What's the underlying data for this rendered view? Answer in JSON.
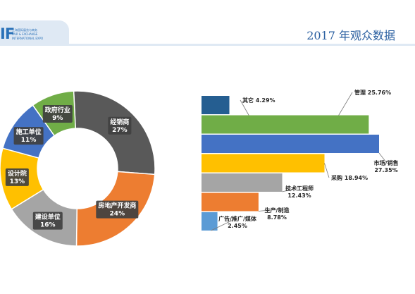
{
  "header": {
    "logo_mark": "IF",
    "logo_lines": [
      "上海国际展览与商务",
      "FAIR & EXCHANGE",
      "INTERNATIONAL EXPO"
    ],
    "title": "2017 年观众数据"
  },
  "colors": {
    "header_band": "#dfe9f4",
    "title": "#2a5fa0",
    "label_bg": "#404040",
    "leader_line": "#7a7a7a"
  },
  "chart_data": [
    {
      "type": "pie",
      "variant": "donut",
      "categories": [
        "经销商",
        "房地产开发商",
        "建设单位",
        "设计院",
        "施工单位",
        "政府行业"
      ],
      "values": [
        27,
        24,
        16,
        13,
        11,
        9
      ],
      "value_labels": [
        "27%",
        "24%",
        "16%",
        "13%",
        "11%",
        "9%"
      ],
      "colors": [
        "#595959",
        "#ed7d31",
        "#a5a5a5",
        "#ffc000",
        "#4472c4",
        "#70ad47"
      ],
      "legend": "none"
    },
    {
      "type": "bar",
      "orientation": "horizontal",
      "categories": [
        "其它",
        "管理",
        "市场/销售",
        "采购",
        "技术工程师",
        "生产/制造",
        "广告/推广/媒体"
      ],
      "values": [
        4.29,
        25.76,
        27.35,
        18.94,
        12.43,
        8.78,
        2.45
      ],
      "value_labels": [
        "4.29%",
        "25.76%",
        "27.35%",
        "18.94%",
        "12.43%",
        "8.78%",
        "2.45%"
      ],
      "colors": [
        "#255e91",
        "#70ad47",
        "#4472c4",
        "#ffc000",
        "#a5a5a5",
        "#ed7d31",
        "#5b9bd5"
      ],
      "xlim": [
        0,
        28
      ],
      "grid": false,
      "legend": "none"
    }
  ]
}
